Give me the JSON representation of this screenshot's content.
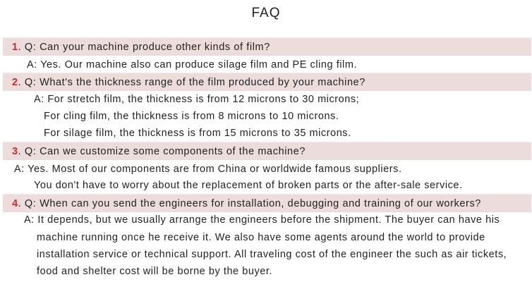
{
  "title": "FAQ",
  "faq": [
    {
      "num": "1",
      "question": ". Q: Can your machine produce other kinds of film?",
      "answer": [
        "A: Yes. Our machine also can produce silage film and PE cling film."
      ]
    },
    {
      "num": "2",
      "question": ". Q: What's the thickness range of the film produced by your machine?",
      "answer": [
        "A: For stretch film, the thickness is from 12 microns to 30 microns;",
        "For cling film, the thickness is from 8 microns to 10 microns.",
        "For silage film, the thickness is from 15 microns to 35 microns."
      ]
    },
    {
      "num": "3",
      "question": ". Q: Can we customize some components of the machine?",
      "answer": [
        "A: Yes. Most of our components are from China or worldwide famous suppliers.",
        "You don't have to worry about the replacement of broken parts or the after-sale service."
      ]
    },
    {
      "num": "4",
      "question": ". Q: When can you send the engineers for installation, debugging and training of our workers?",
      "answer": [
        "A: It depends, but we usually arrange the engineers before the shipment. The buyer can have his",
        "machine running once he receive it. We also have some agents around the world to provide",
        "installation service or technical support. All traveling cost of the engineer the such as air tickets,",
        "food and shelter cost will be borne by the buyer."
      ]
    }
  ],
  "colors": {
    "question_bg": "#ecdcdc",
    "number": "#c0302a"
  }
}
